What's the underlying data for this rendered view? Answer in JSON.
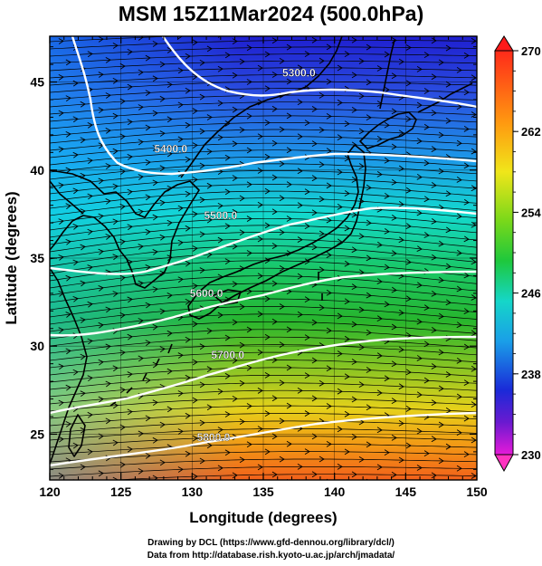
{
  "title": "MSM 15Z11Mar2024 (500.0hPa)",
  "credits": [
    "Drawing by DCL (https://www.gfd-dennou.org/library/dcl/)",
    "Data from http://database.rish.kyoto-u.ac.jp/arch/jmadata/"
  ],
  "map": {
    "xlabel": "Longitude (degrees)",
    "ylabel": "Latitude  (degrees)",
    "lon_range": [
      120,
      150
    ],
    "lat_range": [
      22.4,
      47.6
    ],
    "lon_ticks": [
      120,
      125,
      130,
      135,
      140,
      145,
      150
    ],
    "lat_ticks": [
      25,
      30,
      35,
      40,
      45
    ],
    "contour_labels": [
      {
        "text": "5300.0",
        "lon": 137.5,
        "lat": 45.3
      },
      {
        "text": "5400.0",
        "lon": 128.5,
        "lat": 41.0
      },
      {
        "text": "5500.0",
        "lon": 132.0,
        "lat": 37.2
      },
      {
        "text": "5600.0",
        "lon": 131.0,
        "lat": 32.8
      },
      {
        "text": "5700.0",
        "lon": 132.5,
        "lat": 29.3
      },
      {
        "text": "5800.0",
        "lon": 131.5,
        "lat": 24.6
      }
    ]
  },
  "colorbar": {
    "ticks": [
      "270",
      "262",
      "254",
      "246",
      "238",
      "230"
    ]
  },
  "colors": {
    "frame": "#000000",
    "contour": "#ffffff",
    "stream": "#000000"
  }
}
